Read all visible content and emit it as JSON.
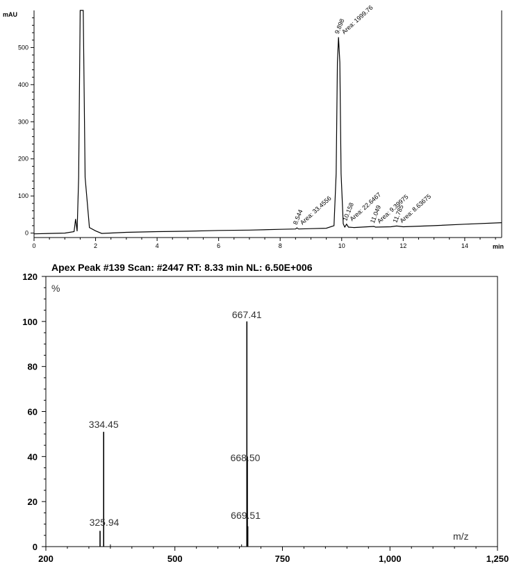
{
  "chart_data": [
    {
      "type": "line",
      "ylabel": "mAU",
      "xlabel": "min",
      "xlim": [
        0,
        15.2
      ],
      "ylim": [
        -12,
        600
      ],
      "xticks": [
        0,
        2,
        4,
        6,
        8,
        10,
        12,
        14
      ],
      "yticks": [
        0,
        100,
        200,
        300,
        400,
        500
      ],
      "series": [
        {
          "x": [
            0,
            0.5,
            1.0,
            1.3,
            1.35,
            1.4,
            1.45,
            1.5,
            1.53,
            1.56,
            1.6,
            1.66,
            1.8,
            2.0,
            2.2,
            3,
            4,
            5,
            6,
            7,
            8,
            8.5,
            8.544,
            8.6,
            9.0,
            9.5,
            9.75,
            9.82,
            9.86,
            9.898,
            9.94,
            9.98,
            10.05,
            10.1,
            10.158,
            10.22,
            10.4,
            11.049,
            11.1,
            11.6,
            11.785,
            12.0,
            13,
            14,
            15.2
          ],
          "y": [
            -2,
            -1,
            0,
            4,
            38,
            5,
            150,
            650,
            650,
            650,
            650,
            150,
            15,
            6,
            -1,
            2,
            4,
            5,
            7,
            8,
            10,
            11,
            14,
            11,
            12,
            13,
            20,
            160,
            460,
            528,
            460,
            160,
            25,
            16,
            24,
            16,
            15,
            18,
            16,
            17,
            19,
            17,
            20,
            24,
            28
          ]
        }
      ],
      "peaks": [
        {
          "rt": "8.544",
          "area": "Area: 33.4556",
          "x": 8.544,
          "y": 14
        },
        {
          "rt": "9.898",
          "area": "Area: 1999.76",
          "x": 9.898,
          "y": 528
        },
        {
          "rt": "10.158",
          "area": "Area: 22.6467",
          "x": 10.158,
          "y": 24
        },
        {
          "rt": "11.049",
          "area": "Area: 9.39975",
          "x": 11.049,
          "y": 18
        },
        {
          "rt": "11.785",
          "area": "Area: 8.63675",
          "x": 11.785,
          "y": 19
        }
      ]
    },
    {
      "type": "bar",
      "title": "Apex Peak #139 Scan: #2447 RT: 8.33 min NL: 6.50E+006",
      "ylabel": "%",
      "xlabel": "m/z",
      "xlim": [
        200,
        1250
      ],
      "ylim": [
        0,
        120
      ],
      "xticks": [
        200,
        500,
        750,
        1000,
        1250
      ],
      "xtick_labels": [
        "200",
        "500",
        "750",
        "1,000",
        "1,250"
      ],
      "yticks": [
        0,
        20,
        40,
        60,
        80,
        100,
        120
      ],
      "peaks": [
        {
          "mz": 325.94,
          "intensity": 7,
          "label": "325.94"
        },
        {
          "mz": 334.45,
          "intensity": 51,
          "label": "334.45"
        },
        {
          "mz": 350,
          "intensity": 1,
          "label": ""
        },
        {
          "mz": 655,
          "intensity": 1,
          "label": ""
        },
        {
          "mz": 667.41,
          "intensity": 100,
          "label": "667.41"
        },
        {
          "mz": 668.5,
          "intensity": 40,
          "label": "668.50"
        },
        {
          "mz": 669.51,
          "intensity": 9,
          "label": "669.51"
        }
      ]
    }
  ]
}
